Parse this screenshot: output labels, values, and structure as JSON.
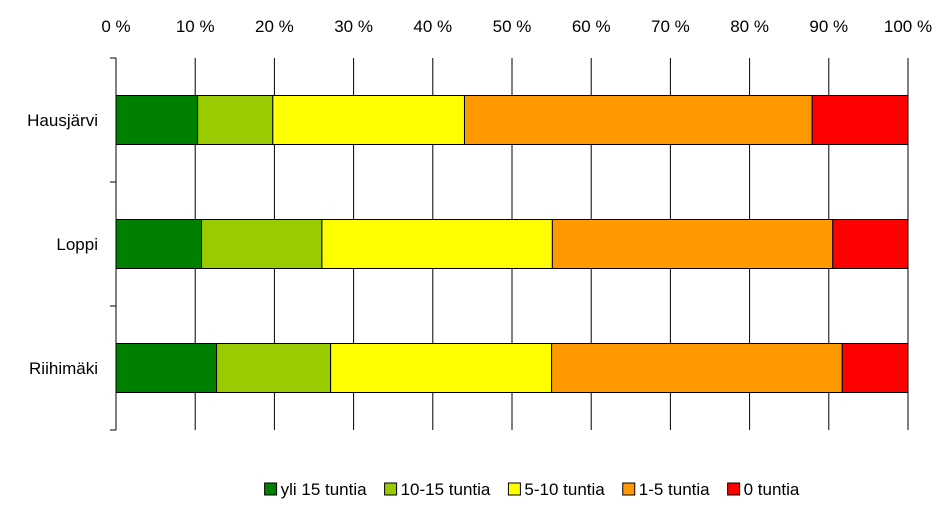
{
  "chart_data": {
    "type": "bar",
    "orientation": "horizontal",
    "stacked": "percent",
    "title": "",
    "xlabel": "",
    "ylabel": "",
    "xlim": [
      0,
      100
    ],
    "x_ticks": [
      "0 %",
      "10 %",
      "20 %",
      "30 %",
      "40 %",
      "50 %",
      "60 %",
      "70 %",
      "80 %",
      "90 %",
      "100 %"
    ],
    "x_axis_position": "top",
    "grid": true,
    "legend_position": "bottom",
    "categories": [
      "Hausjärvi",
      "Loppi",
      "Riihimäki"
    ],
    "series": [
      {
        "name": "yli 15 tuntia",
        "color": "#008000",
        "values": [
          10.3,
          10.8,
          12.7
        ]
      },
      {
        "name": "10-15 tuntia",
        "color": "#99cc00",
        "values": [
          9.5,
          15.2,
          14.4
        ]
      },
      {
        "name": "5-10 tuntia",
        "color": "#ffff00",
        "values": [
          24.2,
          29.1,
          27.9
        ]
      },
      {
        "name": "1-5 tuntia",
        "color": "#ff9900",
        "values": [
          43.9,
          35.4,
          36.7
        ]
      },
      {
        "name": "0 tuntia",
        "color": "#ff0000",
        "values": [
          12.1,
          9.5,
          8.3
        ]
      }
    ]
  }
}
